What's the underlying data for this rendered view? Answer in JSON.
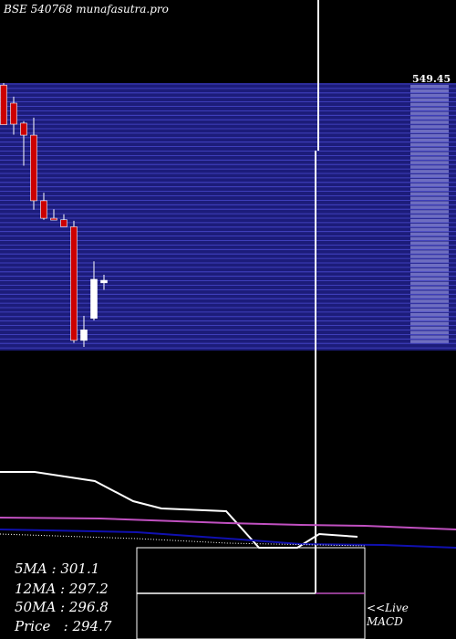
{
  "watermark": "BSE 540768  munafasutra.pro",
  "price_axis_top_label": "549.45",
  "ma_labels": {
    "ma5": "5MA : 301.1",
    "ma12": "12MA : 297.2",
    "ma50": "50MA : 296.8",
    "price": "Price   : 294.7"
  },
  "live_link": "<<Live",
  "macd_label": "MACD",
  "colors": {
    "background": "#000000",
    "price_band": "#1c1c7a",
    "grid_line": "#4a4ad0",
    "candle_down": "#cc0000",
    "candle_up": "#ffffff",
    "ma_short": "#ffffff",
    "ma_mid": "#c050c0",
    "ma_long": "#1010b0"
  },
  "chart_data": {
    "type": "candlestick",
    "price_top_label": 549.45,
    "candles": [
      {
        "open": 549,
        "high": 553,
        "low": 470,
        "close": 470
      },
      {
        "open": 513,
        "high": 526,
        "low": 450,
        "close": 471
      },
      {
        "open": 473,
        "high": 477,
        "low": 388,
        "close": 449
      },
      {
        "open": 449,
        "high": 484,
        "low": 300,
        "close": 318
      },
      {
        "open": 318,
        "high": 334,
        "low": 280,
        "close": 283
      },
      {
        "open": 283,
        "high": 301,
        "low": 280,
        "close": 282
      },
      {
        "open": 280,
        "high": 291,
        "low": 266,
        "close": 266
      },
      {
        "open": 266,
        "high": 278,
        "low": 34,
        "close": 39
      },
      {
        "open": 39,
        "high": 88,
        "low": 26,
        "close": 60
      },
      {
        "open": 83,
        "high": 197,
        "low": 79,
        "close": 161
      },
      {
        "open": 154,
        "high": 170,
        "low": 140,
        "close": 159
      }
    ],
    "moving_averages": {
      "ma5": 301.1,
      "ma12": 297.2,
      "ma50": 296.8,
      "price": 294.7
    }
  }
}
